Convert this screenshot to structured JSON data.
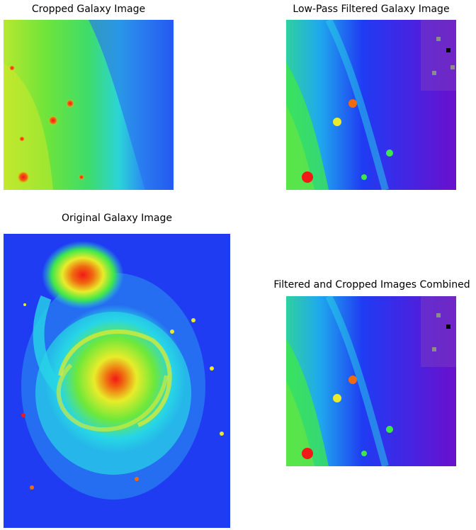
{
  "panels": {
    "cropped": {
      "title": "Cropped Galaxy Image"
    },
    "lowpass": {
      "title": "Low-Pass Filtered Galaxy Image"
    },
    "original": {
      "title": "Original Galaxy Image"
    },
    "combined": {
      "title": "Filtered and Cropped Images Combined"
    }
  },
  "colormap": {
    "blue": "#1f3cf2",
    "cyan": "#27d6e6",
    "green": "#3ee84a",
    "yellow": "#e8ec2a",
    "red": "#f21818",
    "purple": "#6a10cc",
    "gray": "#8c8c8c"
  }
}
